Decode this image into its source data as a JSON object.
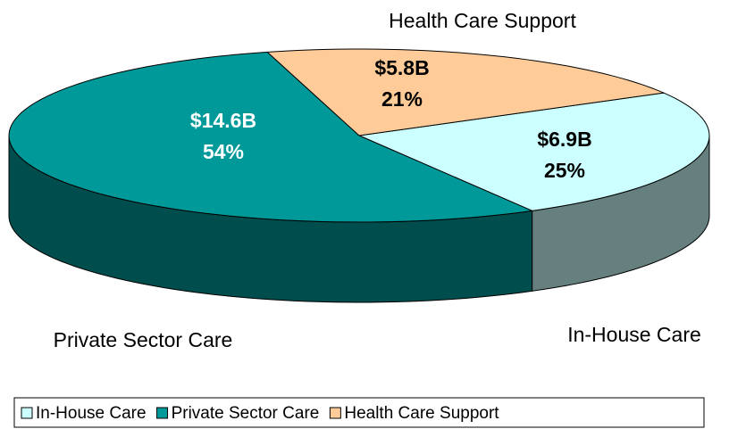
{
  "chart_data": {
    "type": "pie3d",
    "categories": [
      "In-House Care",
      "Private Sector Care",
      "Health Care Support"
    ],
    "values": [
      25,
      54,
      21
    ],
    "value_labels": [
      "25%",
      "54%",
      "21%"
    ],
    "amounts": [
      6900000000,
      14600000000,
      5800000000
    ],
    "amount_labels": [
      "$6.9B",
      "$14.6B",
      "$5.8B"
    ],
    "colors": [
      "#ccffff",
      "#009999",
      "#ffcc99"
    ],
    "legend": "bottom"
  }
}
